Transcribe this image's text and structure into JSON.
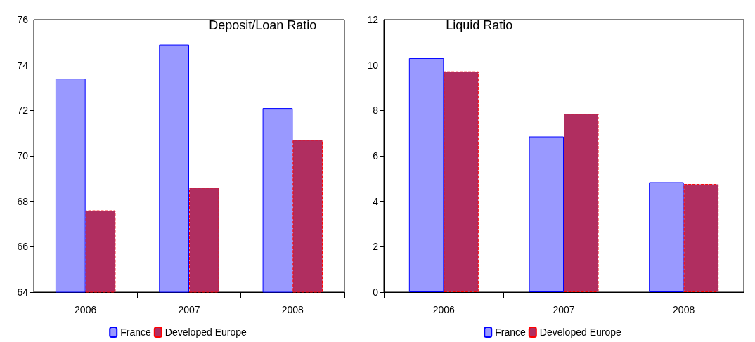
{
  "chart_data": [
    {
      "type": "bar",
      "title": "Deposit/Loan Ratio",
      "categories": [
        "2006",
        "2007",
        "2008"
      ],
      "series": [
        {
          "name": "France",
          "color": "#9999ff",
          "values": [
            73.4,
            74.9,
            72.1
          ]
        },
        {
          "name": "Developed Europe",
          "color": "#b02e60",
          "values": [
            67.6,
            68.6,
            70.7
          ]
        }
      ],
      "ylim": [
        64,
        76
      ],
      "yticks": [
        64,
        66,
        68,
        70,
        72,
        74,
        76
      ],
      "grid": false,
      "legend": "bottom"
    },
    {
      "type": "bar",
      "title": "Liquid Ratio",
      "categories": [
        "2006",
        "2007",
        "2008"
      ],
      "series": [
        {
          "name": "France",
          "color": "#9999ff",
          "values": [
            10.3,
            6.85,
            4.84
          ]
        },
        {
          "name": "Developed Europe",
          "color": "#b02e60",
          "values": [
            9.72,
            7.85,
            4.76
          ]
        }
      ],
      "ylim": [
        0,
        12
      ],
      "yticks": [
        0,
        2,
        4,
        6,
        8,
        10,
        12
      ],
      "grid": false,
      "legend": "bottom"
    }
  ]
}
